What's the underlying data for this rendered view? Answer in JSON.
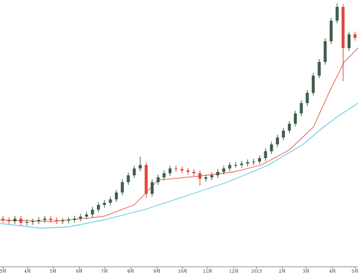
{
  "chart_data": {
    "type": "candlestick",
    "x": [
      0,
      1,
      2,
      3,
      4,
      5,
      6,
      7,
      8,
      9,
      10,
      11,
      12,
      13,
      14,
      15,
      16,
      17,
      18,
      19,
      20,
      21,
      22,
      23,
      24,
      25,
      26,
      27,
      28,
      29,
      30,
      31,
      32,
      33,
      34,
      35,
      36,
      37,
      38,
      39,
      40,
      41,
      42,
      43,
      44,
      45,
      46,
      47,
      48,
      49,
      50,
      51,
      52,
      53,
      54,
      55,
      56,
      57,
      58,
      59
    ],
    "open": [
      70,
      68,
      66,
      70,
      64,
      65,
      66,
      68,
      70,
      68,
      66,
      67,
      68,
      70,
      73,
      76,
      83,
      90,
      93,
      98,
      108,
      123,
      133,
      143,
      148,
      106,
      123,
      130,
      136,
      143,
      142,
      140,
      138,
      136,
      128,
      130,
      133,
      138,
      143,
      148,
      148,
      150,
      152,
      153,
      158,
      168,
      178,
      188,
      198,
      208,
      223,
      238,
      253,
      278,
      298,
      328,
      358,
      378,
      318,
      338
    ],
    "high": [
      74,
      72,
      74,
      74,
      69,
      70,
      72,
      74,
      74,
      72,
      71,
      72,
      74,
      77,
      80,
      87,
      94,
      97,
      102,
      112,
      127,
      137,
      147,
      160,
      152,
      127,
      134,
      140,
      147,
      147,
      146,
      144,
      142,
      140,
      134,
      137,
      142,
      147,
      152,
      152,
      154,
      156,
      157,
      162,
      172,
      182,
      192,
      202,
      212,
      227,
      242,
      257,
      282,
      302,
      332,
      362,
      383,
      382,
      342,
      342
    ],
    "low": [
      64,
      62,
      62,
      60,
      60,
      61,
      62,
      64,
      64,
      62,
      62,
      63,
      64,
      66,
      69,
      72,
      79,
      86,
      89,
      94,
      104,
      119,
      129,
      139,
      100,
      102,
      119,
      126,
      132,
      138,
      136,
      134,
      132,
      118,
      124,
      126,
      129,
      134,
      139,
      144,
      144,
      146,
      148,
      149,
      154,
      164,
      174,
      184,
      194,
      204,
      219,
      234,
      249,
      274,
      294,
      324,
      354,
      270,
      314,
      329
    ],
    "close": [
      68,
      66,
      70,
      64,
      65,
      66,
      68,
      70,
      68,
      66,
      67,
      68,
      70,
      73,
      76,
      83,
      90,
      93,
      98,
      108,
      123,
      133,
      143,
      148,
      106,
      123,
      130,
      136,
      143,
      142,
      140,
      138,
      136,
      128,
      130,
      133,
      138,
      143,
      148,
      148,
      150,
      152,
      153,
      158,
      168,
      178,
      188,
      198,
      208,
      223,
      238,
      253,
      278,
      298,
      328,
      358,
      378,
      318,
      338,
      333
    ],
    "up_color": "#3d5e48",
    "down_color": "#e2473c",
    "series": [
      {
        "color": "#e2473c",
        "x": [
          -0.5,
          8.2,
          16.8,
          22,
          26,
          34.1,
          38.7,
          43.3,
          48,
          52,
          54.9,
          57.2,
          59.5
        ],
        "values": [
          68,
          66,
          73,
          90,
          126,
          133,
          138,
          148,
          170,
          203,
          258,
          298,
          318
        ]
      },
      {
        "color": "#3cc0e0",
        "x": [
          -0.5,
          6.4,
          11,
          16.8,
          23.7,
          30.7,
          37.6,
          44.5,
          50.3,
          53.7,
          56,
          59.5
        ],
        "values": [
          63,
          56,
          58,
          68,
          83,
          103,
          123,
          148,
          178,
          203,
          218,
          238
        ]
      }
    ],
    "xlim": [
      -0.5,
      59.5
    ],
    "ylim": [
      0,
      388
    ],
    "xticks": [
      {
        "value": 0,
        "label": "3月"
      },
      {
        "value": 4.1,
        "label": "4月"
      },
      {
        "value": 8.4,
        "label": "5月"
      },
      {
        "value": 12.8,
        "label": "6月"
      },
      {
        "value": 17.0,
        "label": "7月"
      },
      {
        "value": 21.4,
        "label": "8月"
      },
      {
        "value": 25.8,
        "label": "9月"
      },
      {
        "value": 30.1,
        "label": "10月"
      },
      {
        "value": 34.3,
        "label": "11月"
      },
      {
        "value": 38.7,
        "label": "12月"
      },
      {
        "value": 42.5,
        "label": "2013"
      },
      {
        "value": 46.8,
        "label": "2月"
      },
      {
        "value": 50.8,
        "label": "3月"
      },
      {
        "value": 55.2,
        "label": "4月"
      },
      {
        "value": 59.0,
        "label": "5月"
      }
    ]
  }
}
